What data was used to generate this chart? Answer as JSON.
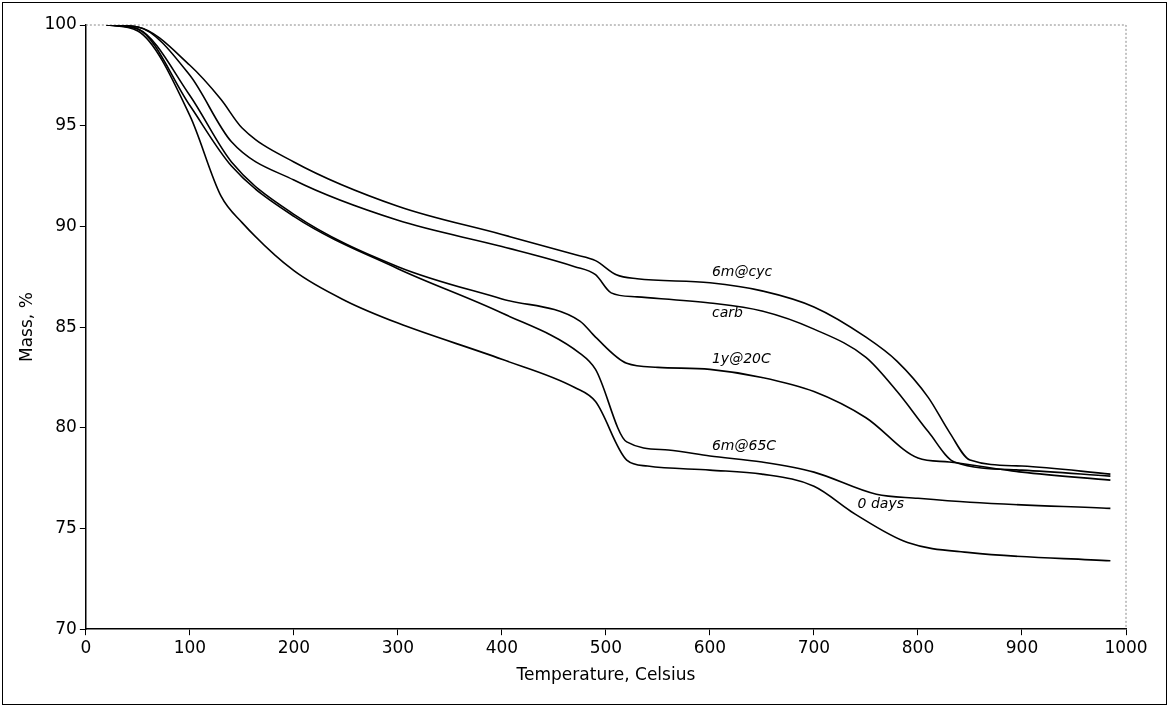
{
  "chart_data": {
    "type": "line",
    "xlabel": "Temperature, Celsius",
    "ylabel": "Mass, %",
    "xlim": [
      0,
      1000
    ],
    "xticks": [
      0,
      100,
      200,
      300,
      400,
      500,
      600,
      700,
      800,
      900,
      1000
    ],
    "ylim": [
      70,
      100
    ],
    "yticks": [
      70,
      75,
      80,
      85,
      90,
      95,
      100
    ],
    "grid": false,
    "legend": false,
    "marker": "none",
    "line_style": "solid",
    "series": [
      {
        "name": "6m@cyc",
        "color": "#000000",
        "x": [
          20,
          50,
          100,
          130,
          150,
          200,
          300,
          400,
          470,
          490,
          510,
          530,
          600,
          650,
          700,
          750,
          780,
          810,
          830,
          850,
          900,
          985
        ],
        "values": [
          100,
          99.9,
          98,
          96.3,
          94.9,
          93.2,
          91.0,
          89.6,
          88.6,
          88.3,
          87.6,
          87.4,
          87.2,
          86.8,
          86.0,
          84.5,
          83.3,
          81.5,
          79.8,
          78.4,
          78.1,
          77.7
        ]
      },
      {
        "name": "carb",
        "color": "#000000",
        "x": [
          20,
          50,
          100,
          140,
          200,
          300,
          400,
          470,
          490,
          505,
          530,
          600,
          650,
          700,
          750,
          780,
          810,
          835,
          900,
          985
        ],
        "values": [
          100,
          99.9,
          97.5,
          94.2,
          92.3,
          90.3,
          89.0,
          88.0,
          87.6,
          86.7,
          86.5,
          86.2,
          85.8,
          84.9,
          83.5,
          81.8,
          79.8,
          78.3,
          77.9,
          77.6
        ]
      },
      {
        "name": "1y@20C",
        "color": "#000000",
        "x": [
          20,
          50,
          100,
          140,
          200,
          300,
          400,
          475,
          490,
          520,
          550,
          600,
          650,
          700,
          750,
          800,
          830,
          900,
          985
        ],
        "values": [
          100,
          99.8,
          96.5,
          93.2,
          90.6,
          88.0,
          86.4,
          85.3,
          84.5,
          83.2,
          83.0,
          82.9,
          82.5,
          81.8,
          80.5,
          78.5,
          78.3,
          77.8,
          77.4
        ]
      },
      {
        "name": "6m@65C",
        "color": "#000000",
        "x": [
          20,
          50,
          100,
          140,
          200,
          300,
          400,
          475,
          490,
          520,
          560,
          600,
          650,
          700,
          760,
          800,
          850,
          985
        ],
        "values": [
          100,
          99.8,
          96,
          93,
          90.5,
          87.9,
          85.7,
          83.7,
          82.9,
          79.3,
          78.9,
          78.6,
          78.3,
          77.8,
          76.7,
          76.5,
          76.3,
          76.0
        ]
      },
      {
        "name": "0 days",
        "color": "#000000",
        "x": [
          20,
          50,
          100,
          130,
          150,
          200,
          250,
          300,
          400,
          470,
          490,
          520,
          540,
          600,
          650,
          700,
          740,
          790,
          850,
          985
        ],
        "values": [
          100,
          99.7,
          95.5,
          91.5,
          90.2,
          87.8,
          86.3,
          85.2,
          83.4,
          82.0,
          81.3,
          78.4,
          78.1,
          77.9,
          77.7,
          77.1,
          75.7,
          74.3,
          73.8,
          73.4
        ]
      }
    ]
  }
}
